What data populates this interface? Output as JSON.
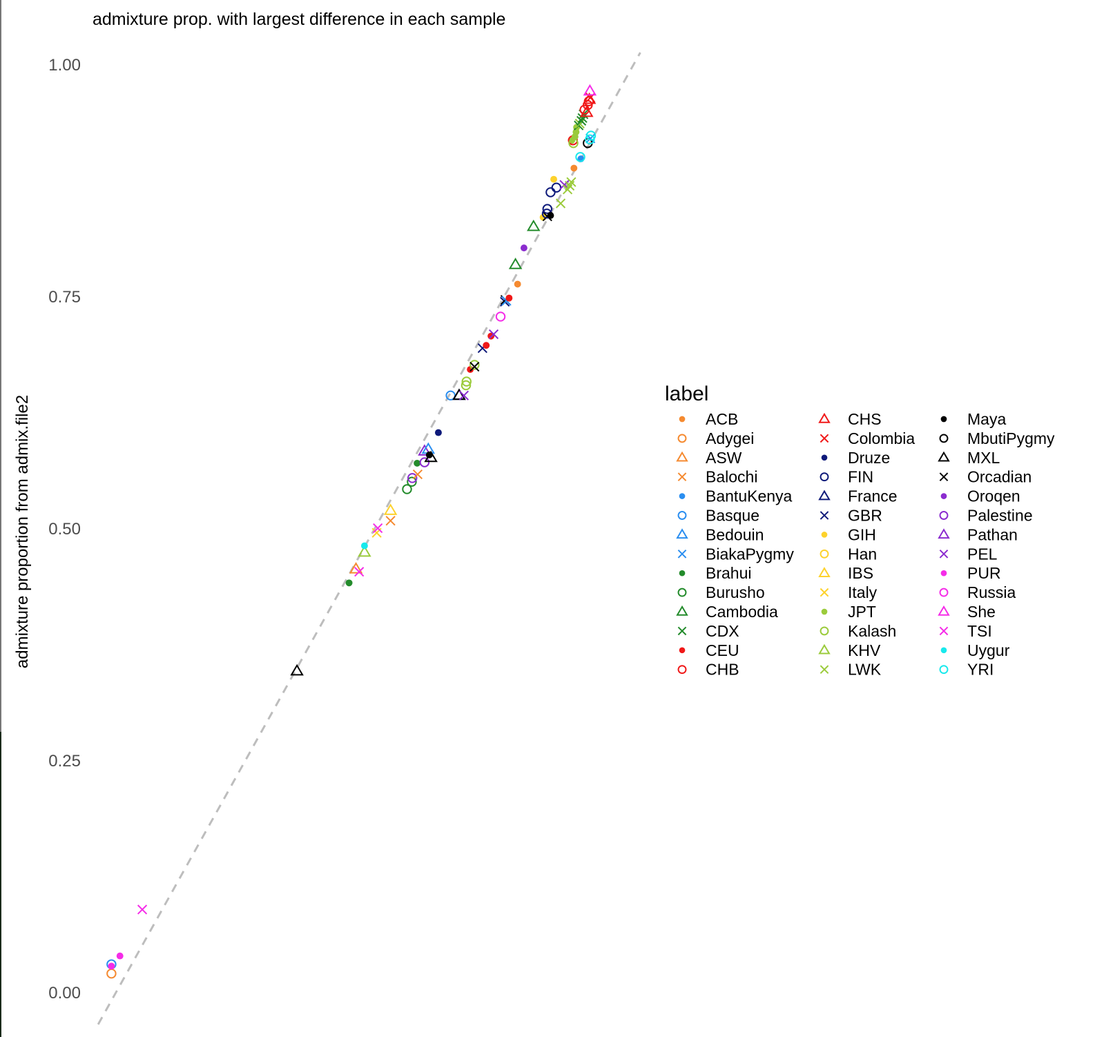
{
  "chart_data": {
    "type": "scatter",
    "title": "admixture prop. with largest difference in each sample",
    "xlabel": "",
    "ylabel": "admixture proportion from admix.file2",
    "ylim": [
      0,
      1.0
    ],
    "xlim": [
      0,
      1.0
    ],
    "y_ticks": [
      "0.00",
      "0.25",
      "0.50",
      "0.75",
      "1.00"
    ],
    "grid": false,
    "legend_position": "right",
    "legend_title": "label",
    "reference_line": {
      "type": "identity",
      "style": "dashed",
      "color": "#bdbdbd"
    },
    "groups": [
      {
        "name": "ACB",
        "color": "#f58a30",
        "shape": "dot"
      },
      {
        "name": "Adygei",
        "color": "#f58a30",
        "shape": "circle"
      },
      {
        "name": "ASW",
        "color": "#f58a30",
        "shape": "triangle"
      },
      {
        "name": "Balochi",
        "color": "#f58a30",
        "shape": "cross"
      },
      {
        "name": "BantuKenya",
        "color": "#2a8ef0",
        "shape": "dot"
      },
      {
        "name": "Basque",
        "color": "#2a8ef0",
        "shape": "circle"
      },
      {
        "name": "Bedouin",
        "color": "#2a8ef0",
        "shape": "triangle"
      },
      {
        "name": "BiakaPygmy",
        "color": "#2a8ef0",
        "shape": "cross"
      },
      {
        "name": "Brahui",
        "color": "#238b2b",
        "shape": "dot"
      },
      {
        "name": "Burusho",
        "color": "#238b2b",
        "shape": "circle"
      },
      {
        "name": "Cambodia",
        "color": "#238b2b",
        "shape": "triangle"
      },
      {
        "name": "CDX",
        "color": "#238b2b",
        "shape": "cross"
      },
      {
        "name": "CEU",
        "color": "#f01818",
        "shape": "dot"
      },
      {
        "name": "CHB",
        "color": "#f01818",
        "shape": "circle"
      },
      {
        "name": "CHS",
        "color": "#f01818",
        "shape": "triangle"
      },
      {
        "name": "Colombia",
        "color": "#f01818",
        "shape": "cross"
      },
      {
        "name": "Druze",
        "color": "#0e1a7a",
        "shape": "dot"
      },
      {
        "name": "FIN",
        "color": "#0e1a7a",
        "shape": "circle"
      },
      {
        "name": "France",
        "color": "#0e1a7a",
        "shape": "triangle"
      },
      {
        "name": "GBR",
        "color": "#0e1a7a",
        "shape": "cross"
      },
      {
        "name": "GIH",
        "color": "#fdd22c",
        "shape": "dot"
      },
      {
        "name": "Han",
        "color": "#fdd22c",
        "shape": "circle"
      },
      {
        "name": "IBS",
        "color": "#fdd22c",
        "shape": "triangle"
      },
      {
        "name": "Italy",
        "color": "#fdd22c",
        "shape": "cross"
      },
      {
        "name": "JPT",
        "color": "#9bcb3b",
        "shape": "dot"
      },
      {
        "name": "Kalash",
        "color": "#9bcb3b",
        "shape": "circle"
      },
      {
        "name": "KHV",
        "color": "#9bcb3b",
        "shape": "triangle"
      },
      {
        "name": "LWK",
        "color": "#9bcb3b",
        "shape": "cross"
      },
      {
        "name": "Maya",
        "color": "#000000",
        "shape": "dot"
      },
      {
        "name": "MbutiPygmy",
        "color": "#000000",
        "shape": "circle"
      },
      {
        "name": "MXL",
        "color": "#000000",
        "shape": "triangle"
      },
      {
        "name": "Orcadian",
        "color": "#000000",
        "shape": "cross"
      },
      {
        "name": "Oroqen",
        "color": "#8b2ccf",
        "shape": "dot"
      },
      {
        "name": "Palestine",
        "color": "#8b2ccf",
        "shape": "circle"
      },
      {
        "name": "Pathan",
        "color": "#8b2ccf",
        "shape": "triangle"
      },
      {
        "name": "PEL",
        "color": "#8b2ccf",
        "shape": "cross"
      },
      {
        "name": "PUR",
        "color": "#f52ce8",
        "shape": "dot"
      },
      {
        "name": "Russia",
        "color": "#f52ce8",
        "shape": "circle"
      },
      {
        "name": "She",
        "color": "#f52ce8",
        "shape": "triangle"
      },
      {
        "name": "TSI",
        "color": "#f52ce8",
        "shape": "cross"
      },
      {
        "name": "Uygur",
        "color": "#18e9ec",
        "shape": "dot"
      },
      {
        "name": "YRI",
        "color": "#18e9ec",
        "shape": "circle"
      }
    ],
    "points": [
      {
        "label": "Adygei",
        "x": 0.02,
        "y": 0.02
      },
      {
        "label": "Basque",
        "x": 0.02,
        "y": 0.03
      },
      {
        "label": "PUR",
        "x": 0.02,
        "y": 0.028
      },
      {
        "label": "PUR",
        "x": 0.036,
        "y": 0.039
      },
      {
        "label": "TSI",
        "x": 0.078,
        "y": 0.089
      },
      {
        "label": "MXL",
        "x": 0.369,
        "y": 0.346
      },
      {
        "label": "Brahui",
        "x": 0.467,
        "y": 0.441
      },
      {
        "label": "ASW",
        "x": 0.48,
        "y": 0.456
      },
      {
        "label": "TSI",
        "x": 0.486,
        "y": 0.453
      },
      {
        "label": "KHV",
        "x": 0.496,
        "y": 0.474
      },
      {
        "label": "Uygur",
        "x": 0.496,
        "y": 0.481
      },
      {
        "label": "Italy",
        "x": 0.519,
        "y": 0.495
      },
      {
        "label": "TSI",
        "x": 0.521,
        "y": 0.5
      },
      {
        "label": "IBS",
        "x": 0.545,
        "y": 0.519
      },
      {
        "label": "Balochi",
        "x": 0.545,
        "y": 0.508
      },
      {
        "label": "Burusho",
        "x": 0.576,
        "y": 0.542
      },
      {
        "label": "Burusho",
        "x": 0.585,
        "y": 0.55
      },
      {
        "label": "Palestine",
        "x": 0.586,
        "y": 0.554
      },
      {
        "label": "Balochi",
        "x": 0.596,
        "y": 0.558
      },
      {
        "label": "Brahui",
        "x": 0.595,
        "y": 0.57
      },
      {
        "label": "Palestine",
        "x": 0.609,
        "y": 0.571
      },
      {
        "label": "Pathan",
        "x": 0.609,
        "y": 0.583
      },
      {
        "label": "Bedouin",
        "x": 0.616,
        "y": 0.585
      },
      {
        "label": "Maya",
        "x": 0.618,
        "y": 0.579
      },
      {
        "label": "MXL",
        "x": 0.621,
        "y": 0.576
      },
      {
        "label": "Druze",
        "x": 0.635,
        "y": 0.603
      },
      {
        "label": "Basque",
        "x": 0.658,
        "y": 0.643
      },
      {
        "label": "France",
        "x": 0.674,
        "y": 0.643
      },
      {
        "label": "MXL",
        "x": 0.674,
        "y": 0.643
      },
      {
        "label": "PEL",
        "x": 0.683,
        "y": 0.643
      },
      {
        "label": "Kalash",
        "x": 0.687,
        "y": 0.654
      },
      {
        "label": "Kalash",
        "x": 0.688,
        "y": 0.658
      },
      {
        "label": "CEU",
        "x": 0.695,
        "y": 0.671
      },
      {
        "label": "Kalash",
        "x": 0.703,
        "y": 0.676
      },
      {
        "label": "Orcadian",
        "x": 0.703,
        "y": 0.674
      },
      {
        "label": "GBR",
        "x": 0.718,
        "y": 0.694
      },
      {
        "label": "CEU",
        "x": 0.725,
        "y": 0.697
      },
      {
        "label": "CEU",
        "x": 0.734,
        "y": 0.707
      },
      {
        "label": "PEL",
        "x": 0.739,
        "y": 0.709
      },
      {
        "label": "Russia",
        "x": 0.752,
        "y": 0.728
      },
      {
        "label": "GBR",
        "x": 0.76,
        "y": 0.744
      },
      {
        "label": "Orcadian",
        "x": 0.761,
        "y": 0.746
      },
      {
        "label": "BiakaPygmy",
        "x": 0.763,
        "y": 0.745
      },
      {
        "label": "CEU",
        "x": 0.768,
        "y": 0.748
      },
      {
        "label": "ACB",
        "x": 0.784,
        "y": 0.763
      },
      {
        "label": "Cambodia",
        "x": 0.78,
        "y": 0.784
      },
      {
        "label": "Oroqen",
        "x": 0.796,
        "y": 0.802
      },
      {
        "label": "Cambodia",
        "x": 0.814,
        "y": 0.825
      },
      {
        "label": "GIH",
        "x": 0.832,
        "y": 0.835
      },
      {
        "label": "Orcadian",
        "x": 0.84,
        "y": 0.836
      },
      {
        "label": "FIN",
        "x": 0.839,
        "y": 0.839
      },
      {
        "label": "FIN",
        "x": 0.84,
        "y": 0.844
      },
      {
        "label": "Maya",
        "x": 0.846,
        "y": 0.837
      },
      {
        "label": "FIN",
        "x": 0.846,
        "y": 0.862
      },
      {
        "label": "GIH",
        "x": 0.852,
        "y": 0.876
      },
      {
        "label": "FIN",
        "x": 0.857,
        "y": 0.867
      },
      {
        "label": "LWK",
        "x": 0.865,
        "y": 0.85
      },
      {
        "label": "PEL",
        "x": 0.872,
        "y": 0.87
      },
      {
        "label": "LWK",
        "x": 0.878,
        "y": 0.865
      },
      {
        "label": "LWK",
        "x": 0.882,
        "y": 0.869
      },
      {
        "label": "LWK",
        "x": 0.885,
        "y": 0.873
      },
      {
        "label": "ACB",
        "x": 0.89,
        "y": 0.888
      },
      {
        "label": "BantuKenya",
        "x": 0.903,
        "y": 0.898
      },
      {
        "label": "YRI",
        "x": 0.902,
        "y": 0.9
      },
      {
        "label": "JPT",
        "x": 0.886,
        "y": 0.918
      },
      {
        "label": "CHB",
        "x": 0.888,
        "y": 0.918
      },
      {
        "label": "Kalash",
        "x": 0.889,
        "y": 0.915
      },
      {
        "label": "JPT",
        "x": 0.892,
        "y": 0.922
      },
      {
        "label": "JPT",
        "x": 0.894,
        "y": 0.927
      },
      {
        "label": "JPT",
        "x": 0.895,
        "y": 0.932
      },
      {
        "label": "CDX",
        "x": 0.899,
        "y": 0.934
      },
      {
        "label": "LWK",
        "x": 0.901,
        "y": 0.936
      },
      {
        "label": "CDX",
        "x": 0.904,
        "y": 0.939
      },
      {
        "label": "CDX",
        "x": 0.906,
        "y": 0.942
      },
      {
        "label": "CDX",
        "x": 0.908,
        "y": 0.946
      },
      {
        "label": "CHB",
        "x": 0.91,
        "y": 0.951
      },
      {
        "label": "CHS",
        "x": 0.914,
        "y": 0.948
      },
      {
        "label": "CHB",
        "x": 0.916,
        "y": 0.956
      },
      {
        "label": "CHB",
        "x": 0.918,
        "y": 0.96
      },
      {
        "label": "CHS",
        "x": 0.919,
        "y": 0.962
      },
      {
        "label": "Colombia",
        "x": 0.921,
        "y": 0.964
      },
      {
        "label": "She",
        "x": 0.92,
        "y": 0.971
      },
      {
        "label": "MbutiPygmy",
        "x": 0.916,
        "y": 0.915
      },
      {
        "label": "BiakaPygmy",
        "x": 0.921,
        "y": 0.92
      },
      {
        "label": "YRI",
        "x": 0.922,
        "y": 0.923
      },
      {
        "label": "YRI",
        "x": 0.92,
        "y": 0.919
      }
    ]
  }
}
